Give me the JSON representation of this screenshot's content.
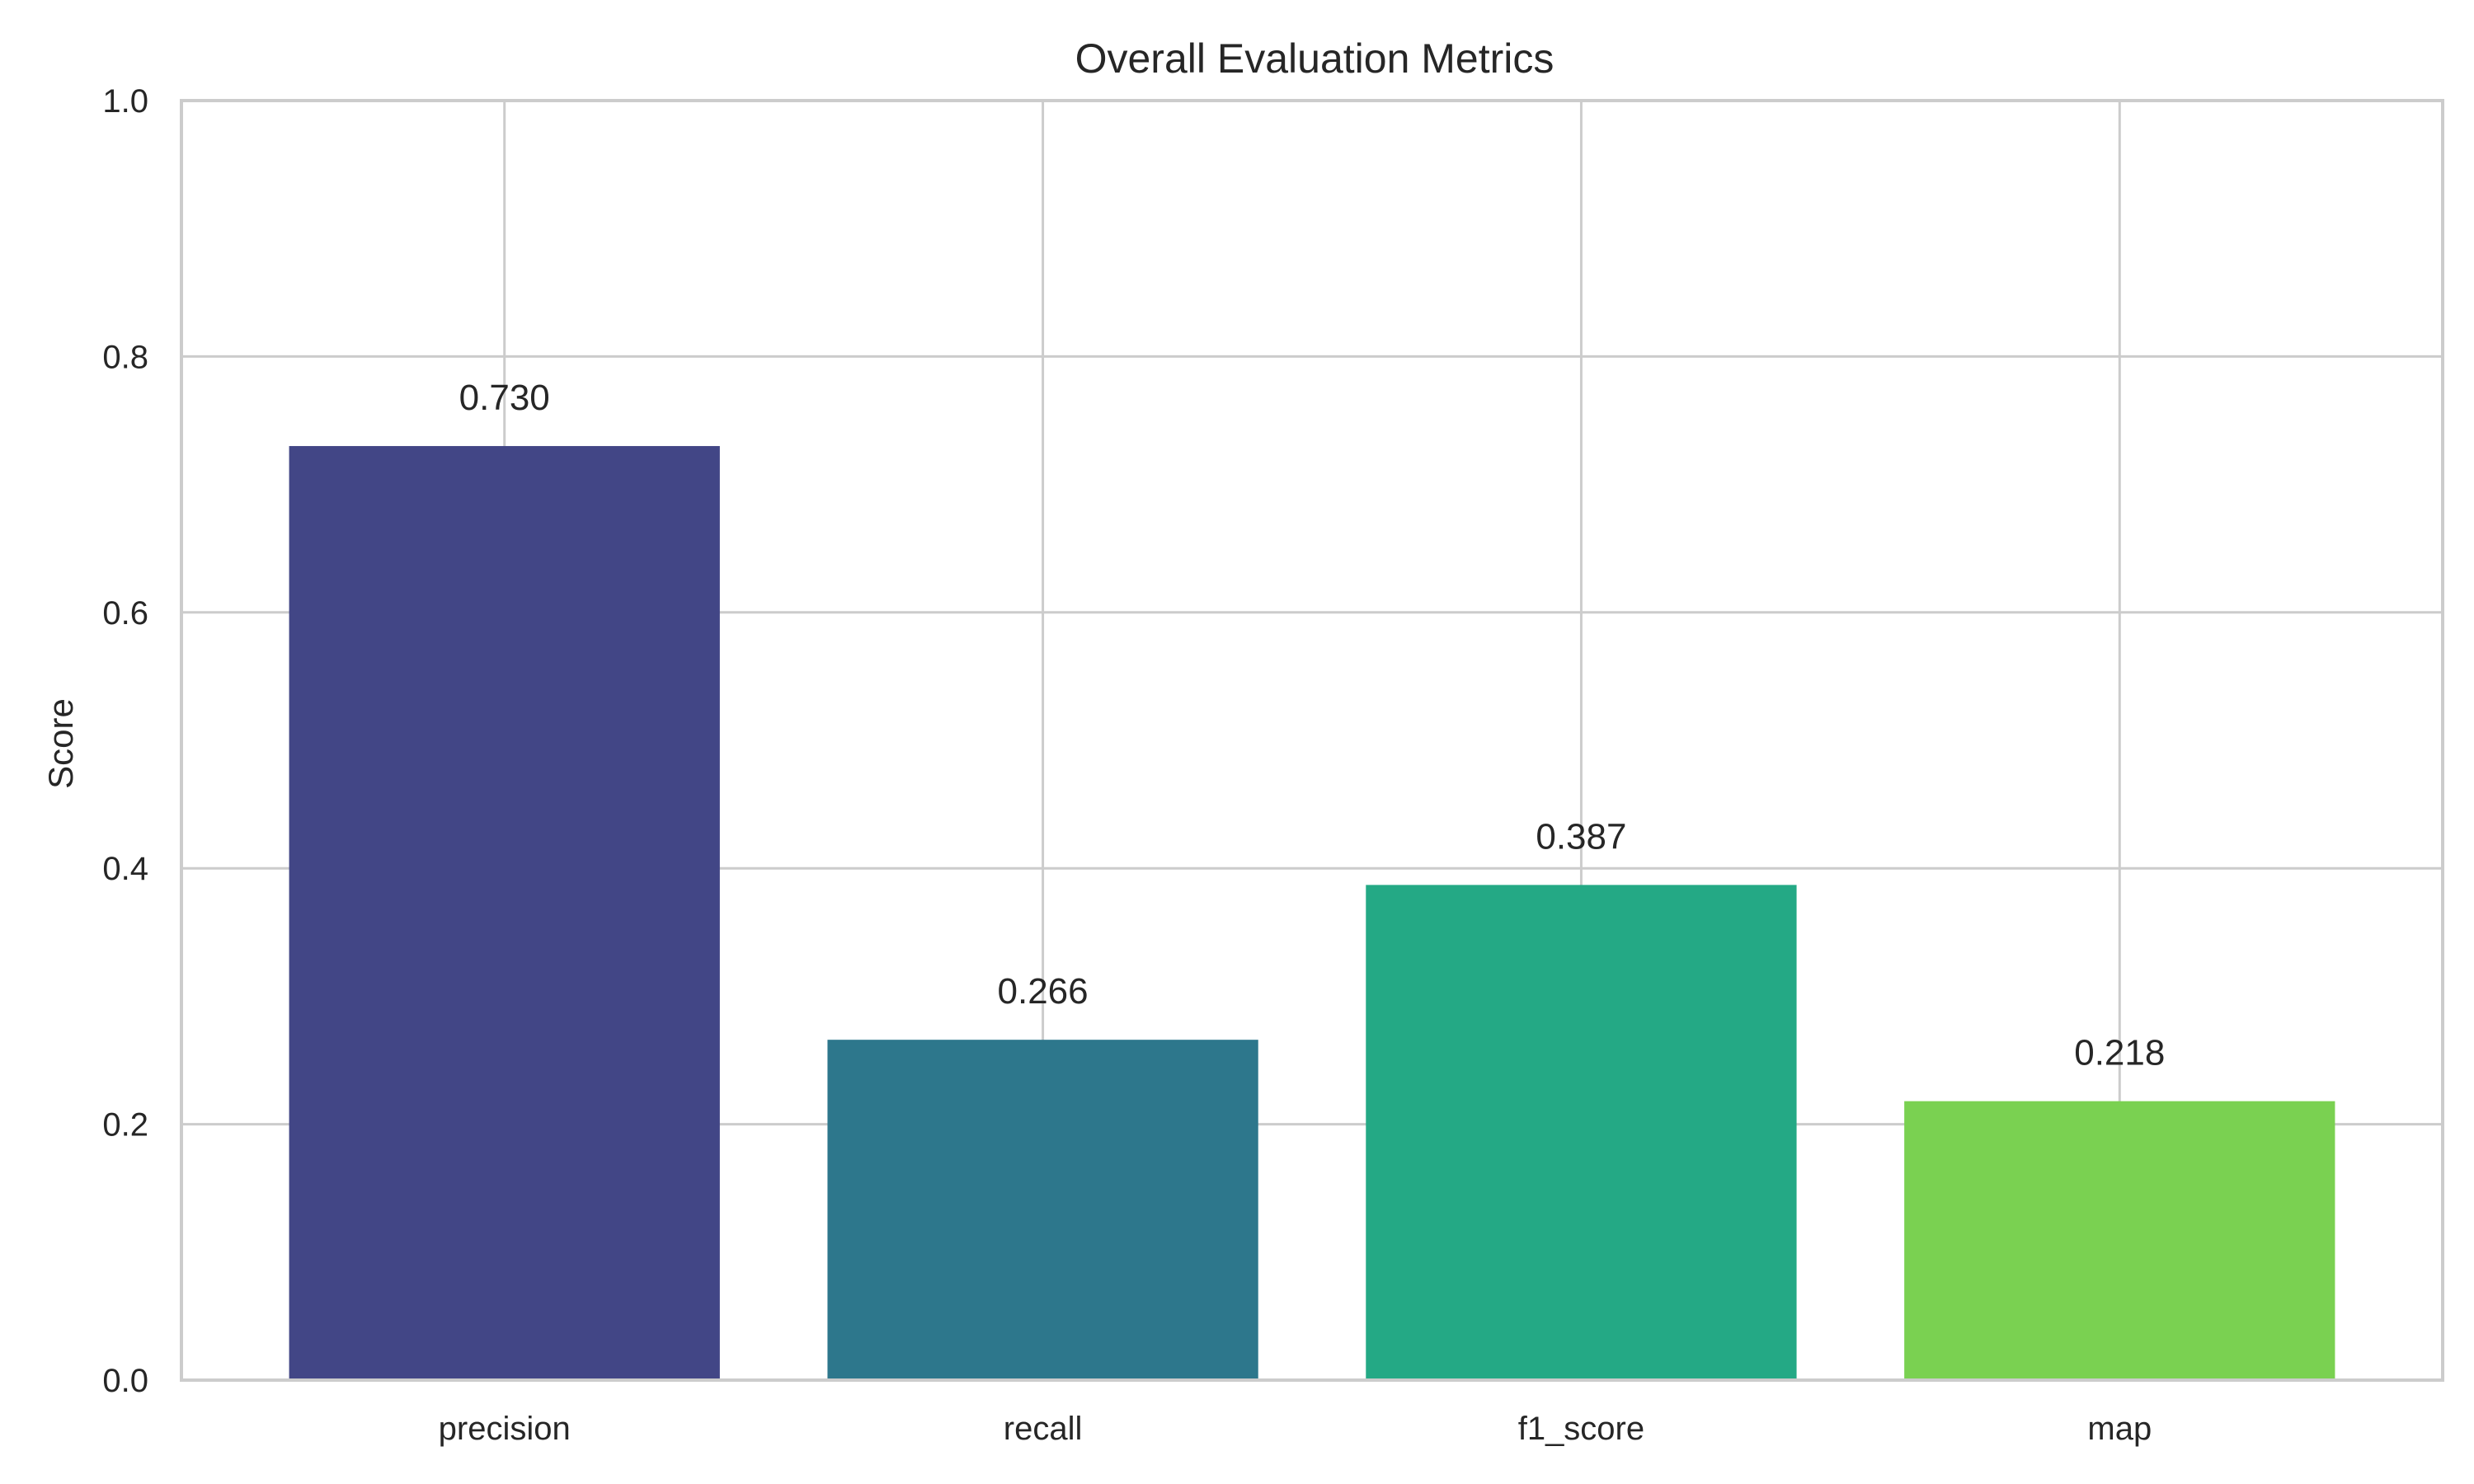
{
  "chart_data": {
    "type": "bar",
    "title": "Overall Evaluation Metrics",
    "xlabel": "",
    "ylabel": "Score",
    "categories": [
      "precision",
      "recall",
      "f1_score",
      "map"
    ],
    "values": [
      0.73,
      0.266,
      0.387,
      0.218
    ],
    "value_labels": [
      "0.730",
      "0.266",
      "0.387",
      "0.218"
    ],
    "colors": [
      "#424686",
      "#2d778c",
      "#24a985",
      "#7ad151"
    ],
    "ylim": [
      0,
      1.0
    ],
    "y_ticks": [
      0.0,
      0.2,
      0.4,
      0.6,
      0.8,
      1.0
    ],
    "y_tick_labels": [
      "0.0",
      "0.2",
      "0.4",
      "0.6",
      "0.8",
      "1.0"
    ],
    "grid": true,
    "legend": "none"
  }
}
